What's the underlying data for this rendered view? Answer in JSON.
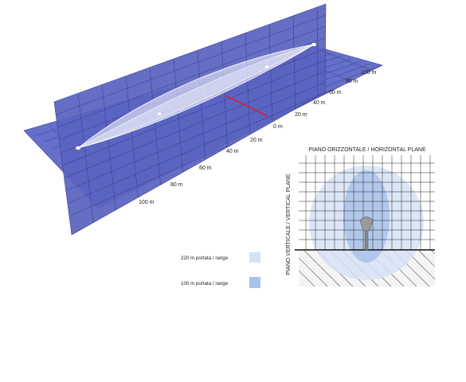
{
  "scale_near": [
    "100 m",
    "80 m",
    "60 m",
    "40 m",
    "20 m"
  ],
  "scale_far": [
    "0 m",
    "20 m",
    "40 m",
    "60 m",
    "80 m",
    "100 m"
  ],
  "horizontal_plane_title": "PIANO ORIZZONTALE / HORIZONTAL PLANE",
  "vertical_plane_title": "PIANO VERTICALE / VERTICAL PLANE",
  "legend": [
    {
      "label": "220 m portata / range",
      "color": "#d6e2f4"
    },
    {
      "label": "100 m portata / range",
      "color": "#a9c2ea"
    }
  ],
  "colors": {
    "plane": "#5a63bf",
    "grid": "#2e358c",
    "beam": "#e8ecfa",
    "center_mark": "#d81e3a"
  }
}
